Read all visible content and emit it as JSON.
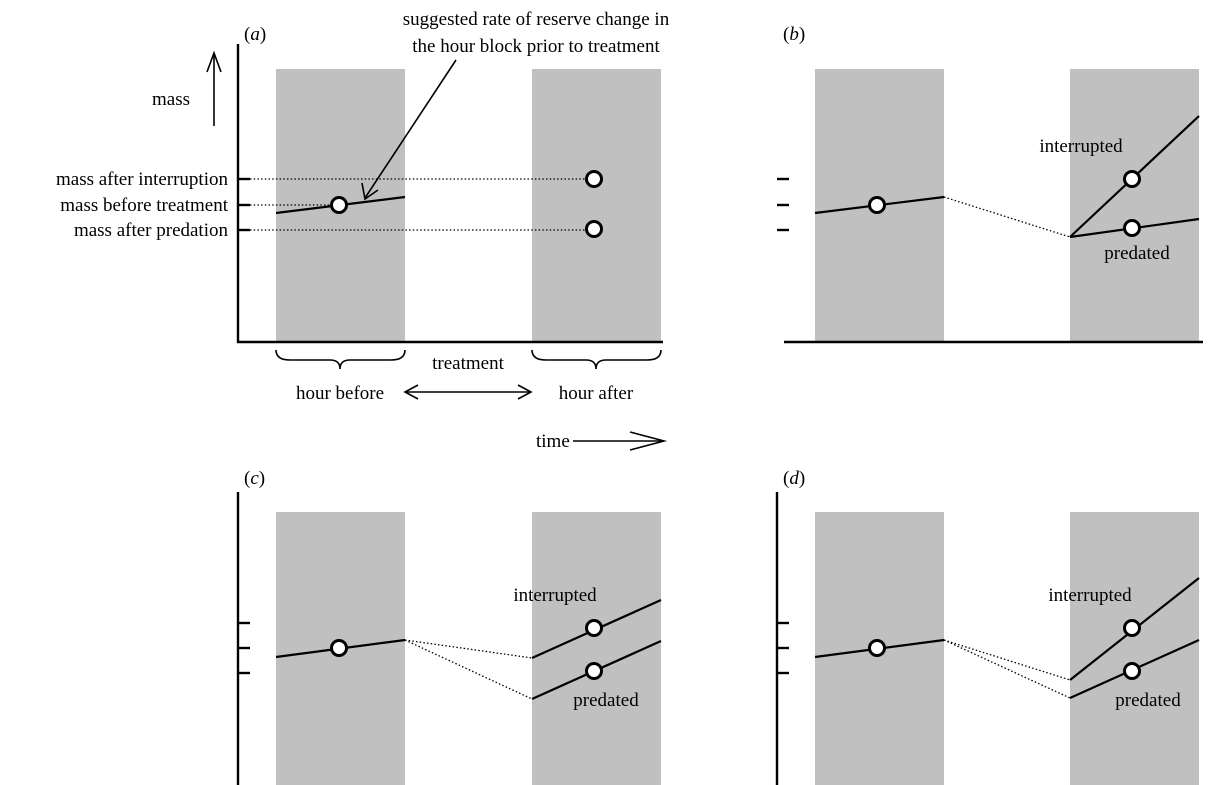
{
  "panels": {
    "a": {
      "tag": "(a)"
    },
    "b": {
      "tag": "(b)"
    },
    "c": {
      "tag": "(c)"
    },
    "d": {
      "tag": "(d)"
    }
  },
  "panel_a": {
    "y_axis_label": "mass",
    "levels": {
      "after_interruption": "mass after interruption",
      "before_treatment": "mass before treatment",
      "after_predation": "mass after predation"
    },
    "annotation": {
      "line1": "suggested rate of reserve change in",
      "line2": "the hour block prior to treatment"
    },
    "blocks": {
      "before": "hour before",
      "treatment": "treatment",
      "after": "hour after"
    },
    "time_label": "time"
  },
  "outcomes": {
    "interrupted": "interrupted",
    "predated": "predated"
  }
}
